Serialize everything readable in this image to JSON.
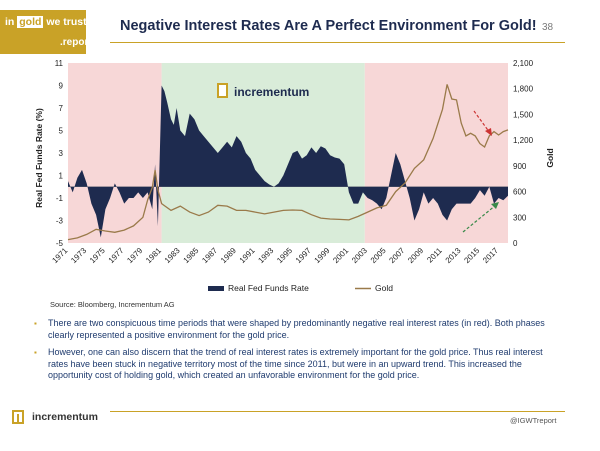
{
  "header": {
    "logo_line1_a": "in",
    "logo_line1_b": "gold",
    "logo_line1_c": "we trust",
    "logo_line2": ".report",
    "title": "Negative Interest Rates Are A Perfect Environment For Gold!",
    "page_number": "38"
  },
  "watermark": "incrementum",
  "source": "Source: Bloomberg, Incrementum AG",
  "bullets": [
    "There are two conspicuous time periods that were shaped by predominantly negative real interest rates (in red). Both phases clearly represented a positive environment for the gold price.",
    "However, one can also discern that the trend of real interest rates is extremely important for the gold price. Thus real interest rates have been stuck in negative territory most of the time since 2011, but were in an upward trend. This increased the opportunity cost of holding gold, which created an unfavorable environment for the gold price."
  ],
  "footer": {
    "logo_text": "incrementum",
    "handle": "@IGWTreport"
  },
  "colors": {
    "brand_gold": "#c9a227",
    "navy": "#1e2b4f",
    "negative_shade": "#f7d7d7",
    "positive_shade": "#d9ecd9",
    "gold_line": "#9a7a4a",
    "fed_area": "#1e2b4f",
    "down_arrow": "#cc3333",
    "up_arrow": "#3a8a4a"
  },
  "chart_data": {
    "type": "area",
    "ylabel_left": "Real Fed Funds Rate (%)",
    "ylabel_right": "Gold",
    "left_ticks": [
      "11",
      "9",
      "7",
      "5",
      "3",
      "1",
      "-1",
      "-3",
      "-5"
    ],
    "right_ticks": [
      "2,100",
      "1,800",
      "1,500",
      "1,200",
      "900",
      "600",
      "300",
      "0"
    ],
    "x_ticks": [
      "1971",
      "1973",
      "1975",
      "1977",
      "1979",
      "1981",
      "1983",
      "1985",
      "1987",
      "1989",
      "1991",
      "1993",
      "1995",
      "1997",
      "1999",
      "2001",
      "2003",
      "2005",
      "2007",
      "2009",
      "2011",
      "2013",
      "2015",
      "2017"
    ],
    "ylim_left": [
      -5,
      11
    ],
    "ylim_right": [
      0,
      2100
    ],
    "xlim": [
      1971,
      2018
    ],
    "shaded_periods": [
      {
        "from": 1971,
        "to": 1981,
        "sign": "negative"
      },
      {
        "from": 1981,
        "to": 2002.7,
        "sign": "positive"
      },
      {
        "from": 2002.7,
        "to": 2018,
        "sign": "negative"
      }
    ],
    "series": [
      {
        "name": "Real Fed Funds Rate",
        "kind": "area",
        "axis": "left",
        "x": [
          1971,
          1971.5,
          1972,
          1972.5,
          1973,
          1973.5,
          1974,
          1974.5,
          1975,
          1975.5,
          1976,
          1976.5,
          1977,
          1977.5,
          1978,
          1978.5,
          1979,
          1979.5,
          1980,
          1980.3,
          1980.6,
          1981,
          1981.3,
          1981.6,
          1982,
          1982.3,
          1982.6,
          1983,
          1983.5,
          1984,
          1984.5,
          1985,
          1985.5,
          1986,
          1986.5,
          1987,
          1987.5,
          1988,
          1988.5,
          1989,
          1989.5,
          1990,
          1990.5,
          1991,
          1991.5,
          1992,
          1992.5,
          1993,
          1993.5,
          1994,
          1994.5,
          1995,
          1995.5,
          1996,
          1996.5,
          1997,
          1997.5,
          1998,
          1998.5,
          1999,
          1999.5,
          2000,
          2000.5,
          2001,
          2001.5,
          2002,
          2002.5,
          2003,
          2003.5,
          2004,
          2004.5,
          2005,
          2005.5,
          2006,
          2006.5,
          2007,
          2007.5,
          2008,
          2008.5,
          2009,
          2009.5,
          2010,
          2010.5,
          2011,
          2011.5,
          2012,
          2012.5,
          2013,
          2013.5,
          2014,
          2014.5,
          2015,
          2015.5,
          2016,
          2016.5,
          2017,
          2017.5,
          2018
        ],
        "values": [
          0.5,
          -0.5,
          0.8,
          1.5,
          0.3,
          -1.5,
          -2.5,
          -4.5,
          -2.0,
          -1.0,
          0.3,
          -0.5,
          -1.5,
          -1.0,
          -1.0,
          -0.5,
          -1.0,
          -0.5,
          -2.0,
          2.0,
          -3.5,
          9.0,
          8.5,
          7.5,
          6.0,
          5.5,
          7.0,
          5.0,
          4.5,
          6.5,
          6.0,
          5.0,
          4.5,
          4.0,
          3.5,
          3.0,
          3.5,
          4.0,
          3.5,
          4.5,
          4.0,
          3.0,
          2.5,
          1.5,
          1.0,
          0.5,
          0.2,
          0.0,
          0.3,
          1.0,
          2.0,
          3.0,
          3.2,
          2.5,
          2.8,
          3.5,
          3.0,
          3.6,
          3.4,
          2.8,
          2.6,
          2.5,
          2.0,
          -0.5,
          -1.5,
          -1.5,
          -0.5,
          -1.0,
          -1.2,
          -1.5,
          -2.0,
          -1.0,
          1.0,
          3.0,
          2.0,
          0.5,
          -1.0,
          -3.0,
          -2.0,
          -0.5,
          -1.5,
          -1.0,
          -1.5,
          -2.5,
          -3.0,
          -2.0,
          -1.5,
          -1.5,
          -1.5,
          -1.5,
          -1.0,
          -0.3,
          -0.8,
          0.0,
          -1.5,
          -1.0,
          -1.2,
          -0.8
        ]
      },
      {
        "name": "Gold",
        "kind": "line",
        "axis": "right",
        "x": [
          1971,
          1972,
          1973,
          1974,
          1975,
          1976,
          1977,
          1978,
          1979,
          1979.5,
          1980,
          1980.3,
          1980.6,
          1981,
          1982,
          1983,
          1984,
          1985,
          1986,
          1987,
          1988,
          1989,
          1990,
          1991,
          1992,
          1993,
          1994,
          1995,
          1996,
          1997,
          1998,
          1999,
          2000,
          2001,
          2002,
          2003,
          2004,
          2005,
          2006,
          2007,
          2008,
          2009,
          2010,
          2011,
          2011.5,
          2012,
          2012.5,
          2013,
          2013.5,
          2014,
          2014.5,
          2015,
          2015.5,
          2016,
          2016.5,
          2017,
          2017.5,
          2018
        ],
        "values": [
          40,
          60,
          100,
          160,
          140,
          125,
          150,
          200,
          300,
          500,
          650,
          850,
          620,
          460,
          380,
          430,
          360,
          320,
          360,
          440,
          430,
          380,
          380,
          360,
          340,
          360,
          380,
          385,
          380,
          330,
          290,
          280,
          275,
          270,
          310,
          360,
          410,
          440,
          600,
          700,
          870,
          970,
          1220,
          1560,
          1850,
          1680,
          1670,
          1400,
          1250,
          1280,
          1250,
          1160,
          1120,
          1250,
          1300,
          1260,
          1300,
          1320
        ]
      }
    ],
    "legend": [
      "Real Fed Funds Rate",
      "Gold"
    ],
    "legend_position": "bottom"
  }
}
